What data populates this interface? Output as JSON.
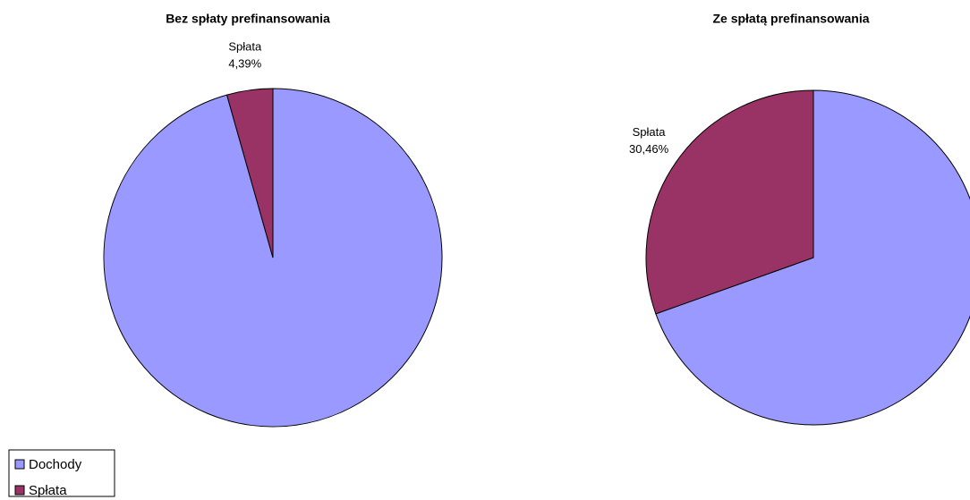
{
  "chart_data": [
    {
      "type": "pie",
      "title": "Bez spłaty prefinansowania",
      "categories": [
        "Dochody",
        "Spłata"
      ],
      "values": [
        95.61,
        4.39
      ],
      "value_labels": [
        null,
        "4,39%"
      ],
      "colors": [
        "#9999ff",
        "#993366"
      ],
      "legend": "bottom-left"
    },
    {
      "type": "pie",
      "title": "Ze spłatą prefinansowania",
      "categories": [
        "Dochody",
        "Spłata"
      ],
      "values": [
        69.54,
        30.46
      ],
      "value_labels": [
        null,
        "30,46%"
      ],
      "colors": [
        "#9999ff",
        "#993366"
      ]
    }
  ]
}
